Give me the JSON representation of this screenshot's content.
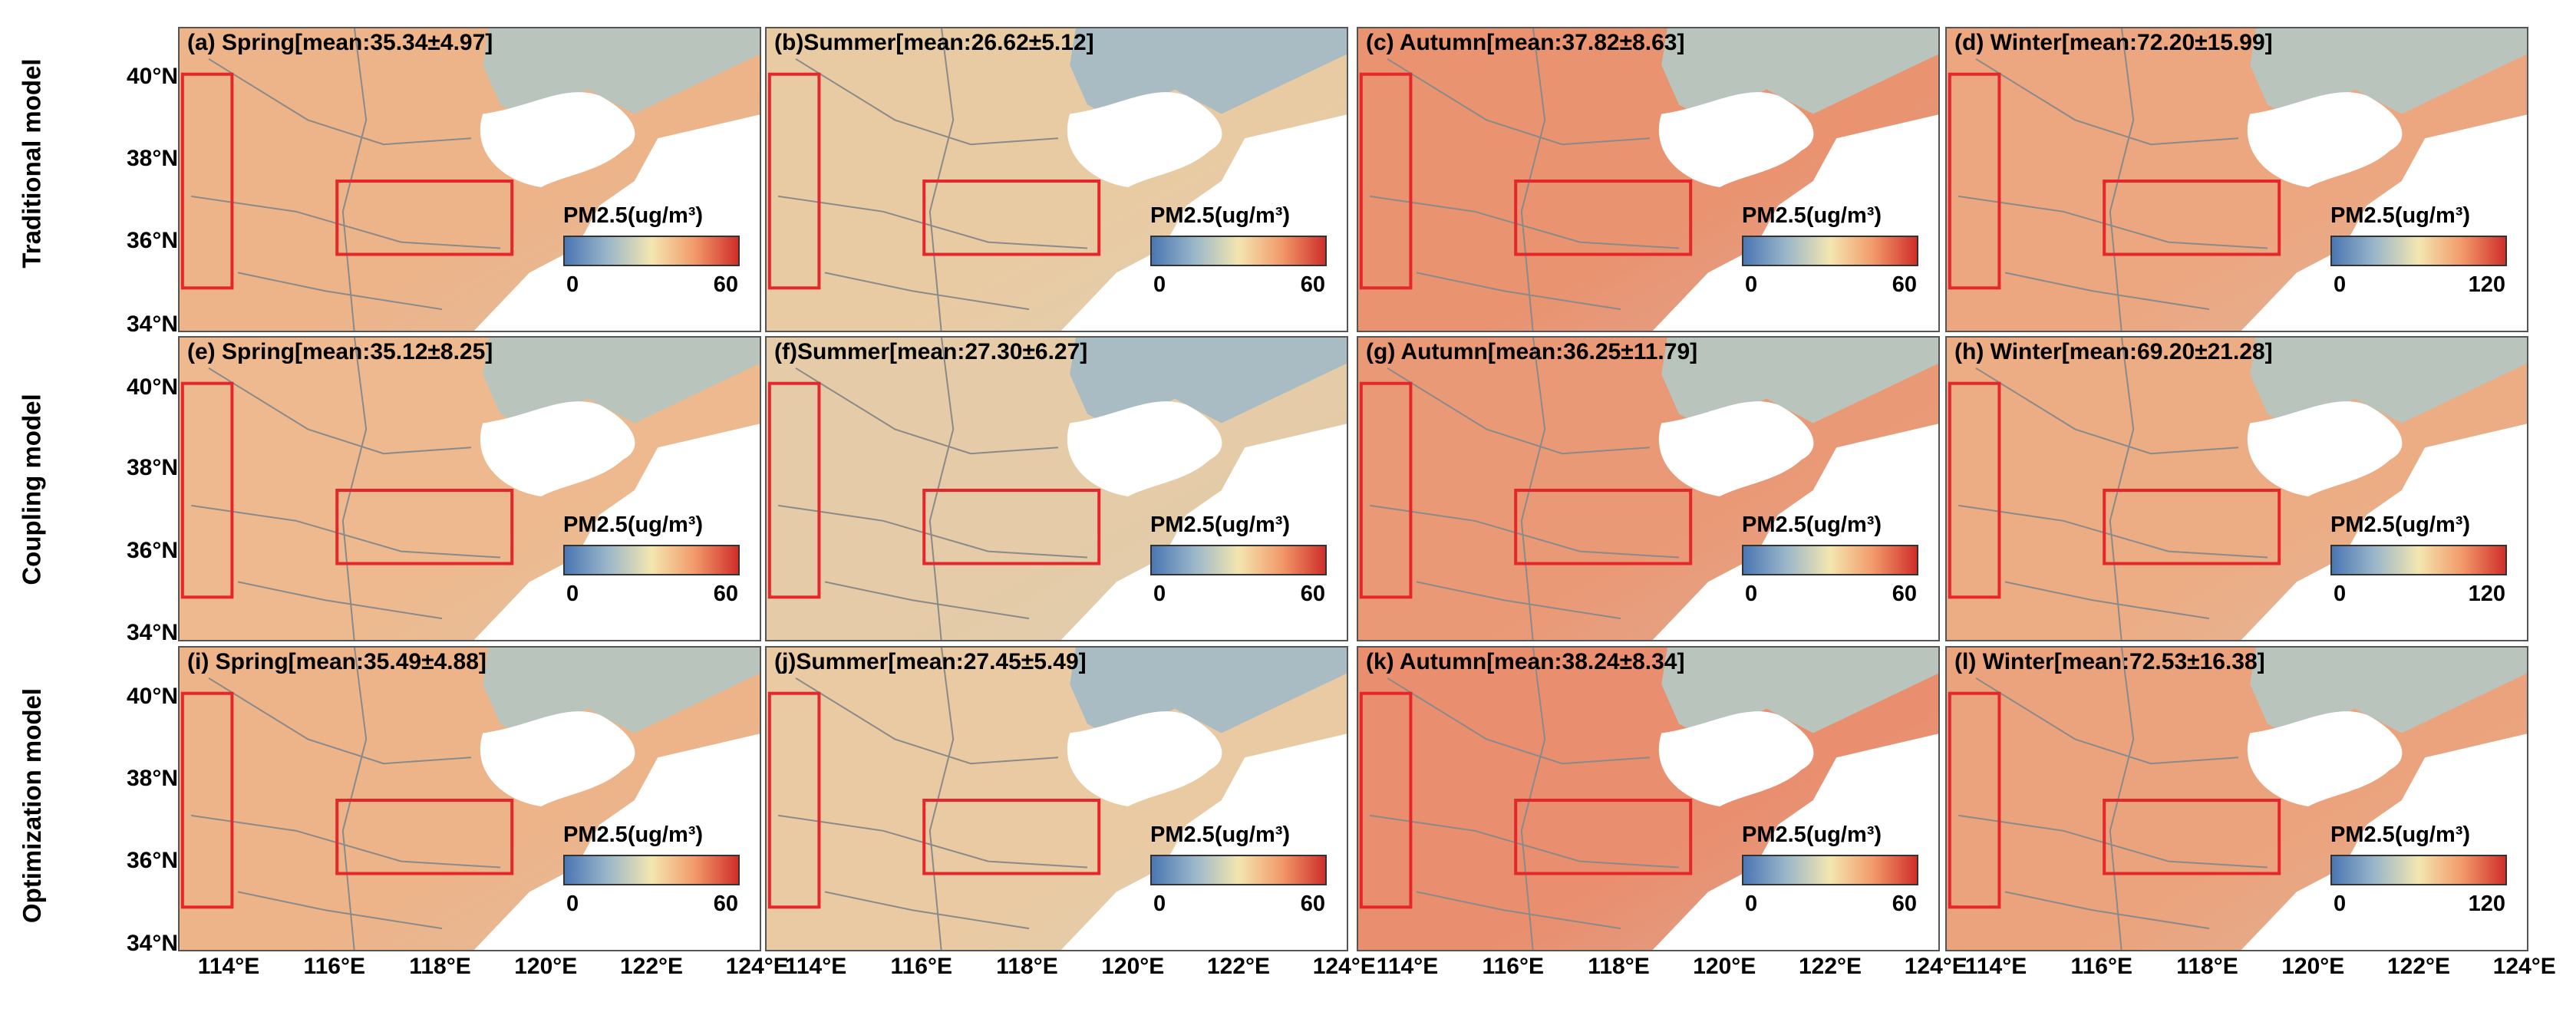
{
  "row_labels": [
    "Traditional model",
    "Coupling model",
    "Optimization model"
  ],
  "lat_ticks": [
    "40°N",
    "38°N",
    "36°N",
    "34°N"
  ],
  "lon_ticks": [
    "114°E",
    "116°E",
    "118°E",
    "120°E",
    "122°E",
    "124°E"
  ],
  "colorbar_label": "PM2.5(ug/m³)",
  "panels": [
    {
      "title": "(a) Spring[mean:35.34±4.97]",
      "season": "Spring",
      "cmin": "0",
      "cmax": "60",
      "level": 0.62
    },
    {
      "title": "(b)Summer[mean:26.62±5.12]",
      "season": "Summer",
      "cmin": "0",
      "cmax": "60",
      "level": 0.45
    },
    {
      "title": "(c) Autumn[mean:37.82±8.63]",
      "season": "Autumn",
      "cmin": "0",
      "cmax": "60",
      "level": 0.72
    },
    {
      "title": "(d) Winter[mean:72.20±15.99]",
      "season": "Winter",
      "cmin": "0",
      "cmax": "120",
      "level": 0.66
    },
    {
      "title": "(e) Spring[mean:35.12±8.25]",
      "season": "Spring",
      "cmin": "0",
      "cmax": "60",
      "level": 0.6
    },
    {
      "title": "(f)Summer[mean:27.30±6.27]",
      "season": "Summer",
      "cmin": "0",
      "cmax": "60",
      "level": 0.4
    },
    {
      "title": "(g) Autumn[mean:36.25±11.79]",
      "season": "Autumn",
      "cmin": "0",
      "cmax": "60",
      "level": 0.7
    },
    {
      "title": "(h) Winter[mean:69.20±21.28]",
      "season": "Winter",
      "cmin": "0",
      "cmax": "120",
      "level": 0.64
    },
    {
      "title": "(i) Spring[mean:35.49±4.88]",
      "season": "Spring",
      "cmin": "0",
      "cmax": "60",
      "level": 0.62
    },
    {
      "title": "(j)Summer[mean:27.45±5.49]",
      "season": "Summer",
      "cmin": "0",
      "cmax": "60",
      "level": 0.46
    },
    {
      "title": "(k) Autumn[mean:38.24±8.34]",
      "season": "Autumn",
      "cmin": "0",
      "cmax": "60",
      "level": 0.73
    },
    {
      "title": "(l) Winter[mean:72.53±16.38]",
      "season": "Winter",
      "cmin": "0",
      "cmax": "120",
      "level": 0.67
    }
  ],
  "colors": {
    "land_high": "#e8896a",
    "land_mid": "#f0c99a",
    "land_low": "#c9d2c9",
    "northeast_land": "#b8c4bc",
    "sea": "#ffffff",
    "boundary": "#8a8a8a",
    "box": "#e5262a"
  }
}
